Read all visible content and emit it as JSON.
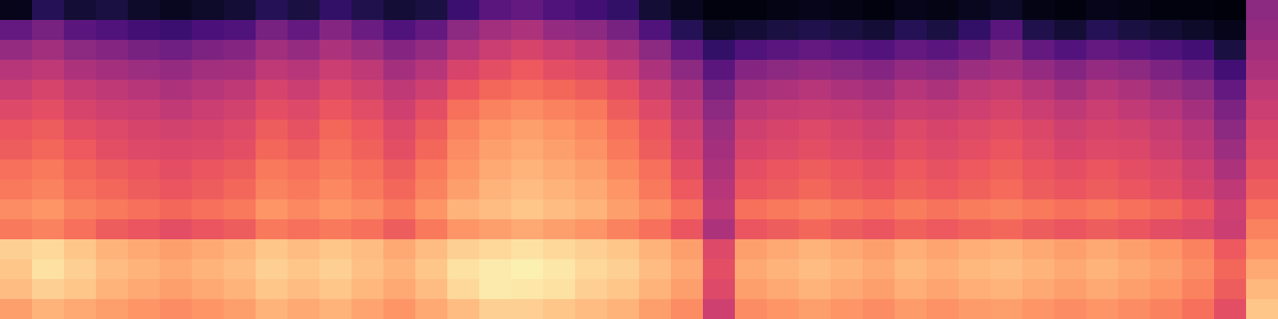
{
  "chart_data": {
    "type": "heatmap",
    "color": "magma",
    "tick_labels": false,
    "color_range": [
      0,
      100
    ],
    "cells": [
      [
        5,
        15,
        10,
        12,
        8,
        6,
        8,
        10,
        15,
        12,
        18,
        14,
        10,
        12,
        20,
        28,
        30,
        25,
        22,
        18,
        10,
        6,
        3,
        3,
        4,
        5,
        4,
        3,
        5,
        4,
        6,
        8,
        4,
        3,
        5,
        4,
        3,
        3,
        2,
        40
      ],
      [
        30,
        35,
        28,
        25,
        22,
        20,
        24,
        25,
        35,
        30,
        38,
        32,
        25,
        30,
        40,
        45,
        48,
        42,
        40,
        35,
        25,
        15,
        8,
        10,
        12,
        14,
        12,
        10,
        15,
        12,
        18,
        28,
        14,
        10,
        15,
        12,
        10,
        8,
        5,
        42
      ],
      [
        42,
        45,
        40,
        38,
        35,
        33,
        36,
        38,
        45,
        42,
        48,
        44,
        38,
        42,
        50,
        55,
        58,
        55,
        52,
        48,
        40,
        30,
        18,
        25,
        28,
        30,
        28,
        26,
        30,
        28,
        32,
        38,
        30,
        26,
        30,
        28,
        25,
        22,
        12,
        45
      ],
      [
        50,
        52,
        48,
        46,
        44,
        42,
        45,
        46,
        52,
        50,
        55,
        52,
        46,
        50,
        58,
        62,
        65,
        62,
        60,
        55,
        48,
        40,
        28,
        38,
        40,
        42,
        40,
        38,
        42,
        40,
        44,
        46,
        42,
        38,
        42,
        40,
        36,
        32,
        22,
        48
      ],
      [
        55,
        58,
        54,
        52,
        50,
        48,
        50,
        52,
        58,
        55,
        60,
        57,
        52,
        56,
        64,
        68,
        70,
        68,
        66,
        62,
        55,
        48,
        35,
        46,
        48,
        50,
        48,
        46,
        50,
        48,
        52,
        54,
        50,
        46,
        50,
        48,
        44,
        40,
        30,
        52
      ],
      [
        60,
        62,
        58,
        56,
        55,
        53,
        55,
        57,
        62,
        60,
        64,
        61,
        56,
        62,
        70,
        74,
        76,
        74,
        72,
        66,
        60,
        52,
        40,
        52,
        54,
        55,
        54,
        52,
        55,
        54,
        56,
        58,
        55,
        52,
        55,
        53,
        50,
        46,
        36,
        55
      ],
      [
        64,
        66,
        62,
        60,
        58,
        57,
        58,
        60,
        66,
        63,
        68,
        65,
        60,
        66,
        74,
        78,
        80,
        78,
        75,
        70,
        64,
        56,
        44,
        56,
        58,
        60,
        58,
        56,
        60,
        58,
        60,
        62,
        59,
        56,
        58,
        57,
        54,
        50,
        40,
        58
      ],
      [
        66,
        68,
        65,
        62,
        60,
        59,
        60,
        62,
        68,
        66,
        70,
        67,
        62,
        68,
        76,
        80,
        82,
        80,
        77,
        72,
        66,
        58,
        46,
        58,
        60,
        62,
        60,
        58,
        62,
        60,
        62,
        64,
        61,
        58,
        60,
        59,
        56,
        52,
        44,
        60
      ],
      [
        70,
        72,
        68,
        66,
        64,
        62,
        64,
        66,
        72,
        70,
        73,
        70,
        66,
        72,
        78,
        82,
        84,
        82,
        80,
        75,
        70,
        62,
        48,
        62,
        64,
        66,
        64,
        62,
        65,
        63,
        65,
        67,
        64,
        62,
        64,
        62,
        60,
        56,
        48,
        63
      ],
      [
        72,
        74,
        70,
        68,
        66,
        64,
        66,
        68,
        74,
        72,
        75,
        72,
        68,
        74,
        80,
        84,
        86,
        84,
        82,
        78,
        72,
        65,
        50,
        64,
        66,
        68,
        66,
        64,
        67,
        65,
        67,
        69,
        66,
        64,
        66,
        64,
        62,
        58,
        52,
        66
      ],
      [
        76,
        78,
        74,
        72,
        70,
        68,
        70,
        72,
        78,
        75,
        78,
        76,
        72,
        78,
        84,
        86,
        88,
        86,
        84,
        80,
        76,
        70,
        52,
        70,
        72,
        74,
        72,
        70,
        73,
        71,
        73,
        74,
        72,
        70,
        72,
        70,
        68,
        64,
        56,
        70
      ],
      [
        72,
        74,
        70,
        66,
        64,
        62,
        64,
        66,
        72,
        70,
        72,
        70,
        66,
        72,
        78,
        80,
        82,
        80,
        78,
        74,
        70,
        64,
        48,
        64,
        66,
        68,
        66,
        64,
        67,
        65,
        67,
        68,
        66,
        64,
        66,
        64,
        62,
        60,
        55,
        74
      ],
      [
        90,
        92,
        88,
        84,
        82,
        80,
        82,
        84,
        88,
        86,
        88,
        86,
        82,
        86,
        90,
        92,
        94,
        92,
        90,
        88,
        84,
        80,
        60,
        80,
        82,
        84,
        82,
        80,
        83,
        81,
        83,
        84,
        82,
        80,
        82,
        80,
        78,
        74,
        65,
        78
      ],
      [
        88,
        94,
        90,
        86,
        84,
        82,
        84,
        86,
        90,
        88,
        90,
        87,
        84,
        88,
        94,
        96,
        97,
        95,
        92,
        90,
        86,
        82,
        62,
        82,
        84,
        86,
        84,
        82,
        85,
        83,
        85,
        86,
        84,
        82,
        84,
        82,
        80,
        76,
        68,
        82
      ],
      [
        86,
        90,
        88,
        84,
        82,
        80,
        82,
        84,
        88,
        86,
        88,
        85,
        82,
        86,
        92,
        96,
        95,
        94,
        90,
        88,
        84,
        80,
        60,
        80,
        82,
        84,
        82,
        80,
        83,
        81,
        83,
        84,
        82,
        80,
        82,
        80,
        78,
        74,
        66,
        85
      ],
      [
        80,
        84,
        82,
        80,
        78,
        76,
        78,
        80,
        84,
        82,
        84,
        81,
        78,
        82,
        86,
        90,
        90,
        88,
        86,
        84,
        80,
        76,
        56,
        76,
        78,
        80,
        78,
        76,
        79,
        77,
        79,
        80,
        78,
        76,
        78,
        76,
        74,
        70,
        62,
        88
      ]
    ]
  }
}
